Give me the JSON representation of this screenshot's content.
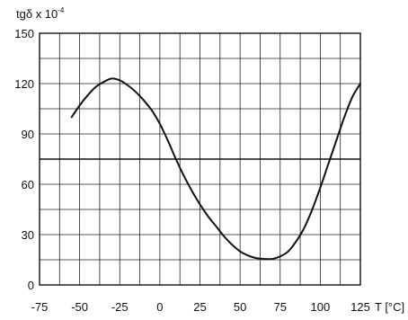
{
  "chart_data": {
    "type": "line",
    "ylabel": {
      "base": "tgδ x 10",
      "exponent": "-4"
    },
    "xlabel": "T [°C]",
    "xlim": [
      -75,
      125
    ],
    "ylim": [
      0,
      150
    ],
    "x_ticks": [
      "-75",
      "-50",
      "-25",
      "0",
      "25",
      "50",
      "75",
      "100",
      "125"
    ],
    "y_ticks": [
      "0",
      "30",
      "60",
      "90",
      "120",
      "150"
    ],
    "x_tick_values": [
      -75,
      -50,
      -25,
      0,
      25,
      50,
      75,
      100,
      125
    ],
    "y_tick_values": [
      0,
      30,
      60,
      90,
      120,
      150
    ],
    "grid": true,
    "grid_x_step": 12.5,
    "grid_y_step": 15,
    "reference_line_y": 75,
    "series": [
      {
        "x": [
          -55,
          -50,
          -45,
          -40,
          -35,
          -30,
          -25,
          -20,
          -15,
          -10,
          -5,
          0,
          5,
          10,
          15,
          20,
          25,
          30,
          35,
          40,
          45,
          50,
          55,
          60,
          65,
          70,
          75,
          80,
          85,
          90,
          95,
          100,
          105,
          110,
          115,
          120,
          125
        ],
        "y": [
          100,
          107,
          113,
          118,
          121,
          123,
          122,
          119,
          115,
          110,
          104,
          96,
          86,
          75,
          65,
          56,
          48,
          41,
          35,
          29,
          24,
          20,
          17.5,
          16,
          15.5,
          15.5,
          17,
          20,
          26,
          34,
          45,
          58,
          72,
          86,
          100,
          112,
          120
        ]
      }
    ],
    "colors": {
      "line": "#111111",
      "grid": "#222222",
      "background": "#ffffff"
    }
  }
}
